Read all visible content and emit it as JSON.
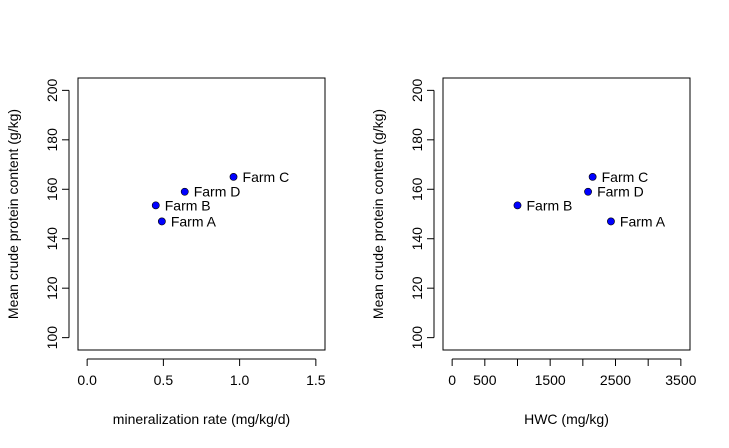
{
  "chart_data": [
    {
      "type": "scatter",
      "xlabel": "mineralization rate (mg/kg/d)",
      "ylabel": "Mean crude protein content (g/kg)",
      "xlim": [
        -0.06,
        1.56
      ],
      "ylim": [
        95,
        205
      ],
      "xticks": [
        0.0,
        0.5,
        1.0,
        1.5
      ],
      "xtick_labels": [
        "0.0",
        "0.5",
        "1.0",
        "1.5"
      ],
      "yticks": [
        100,
        120,
        140,
        160,
        180,
        200
      ],
      "ytick_labels": [
        "100",
        "120",
        "140",
        "160",
        "180",
        "200"
      ],
      "point_color": "#0000ff",
      "grid": false,
      "points": [
        {
          "label": "Farm A",
          "x": 0.49,
          "y": 147
        },
        {
          "label": "Farm B",
          "x": 0.45,
          "y": 153.5
        },
        {
          "label": "Farm C",
          "x": 0.96,
          "y": 165
        },
        {
          "label": "Farm D",
          "x": 0.64,
          "y": 159
        }
      ]
    },
    {
      "type": "scatter",
      "xlabel": "HWC (mg/kg)",
      "ylabel": "Mean crude protein content (g/kg)",
      "xlim": [
        -140,
        3640
      ],
      "ylim": [
        95,
        205
      ],
      "xticks": [
        0,
        500,
        1000,
        1500,
        2000,
        2500,
        3000,
        3500
      ],
      "xtick_labels": [
        "0",
        "500",
        "",
        "1500",
        "",
        "2500",
        "",
        "3500"
      ],
      "yticks": [
        100,
        120,
        140,
        160,
        180,
        200
      ],
      "ytick_labels": [
        "100",
        "120",
        "140",
        "160",
        "180",
        "200"
      ],
      "point_color": "#0000ff",
      "grid": false,
      "points": [
        {
          "label": "Farm A",
          "x": 2430,
          "y": 147
        },
        {
          "label": "Farm B",
          "x": 1000,
          "y": 153.5
        },
        {
          "label": "Farm C",
          "x": 2150,
          "y": 165
        },
        {
          "label": "Farm D",
          "x": 2080,
          "y": 159
        }
      ]
    }
  ]
}
